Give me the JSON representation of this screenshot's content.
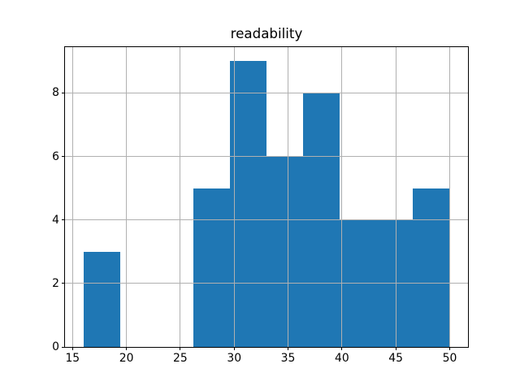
{
  "chart_data": {
    "type": "histogram",
    "title": "readability",
    "xlabel": "",
    "ylabel": "",
    "bin_edges": [
      16.0,
      19.4,
      22.8,
      26.2,
      29.6,
      33.0,
      36.4,
      39.8,
      43.2,
      46.6,
      50.0
    ],
    "counts": [
      3,
      0,
      0,
      5,
      9,
      6,
      8,
      4,
      4,
      5
    ],
    "xticks": [
      15,
      20,
      25,
      30,
      35,
      40,
      45,
      50
    ],
    "yticks": [
      0,
      2,
      4,
      6,
      8
    ],
    "xlim": [
      14.3,
      51.7
    ],
    "ylim": [
      0,
      9.45
    ],
    "grid": true,
    "legend": null,
    "bar_color": "#1f77b4",
    "grid_color": "#b0b0b0",
    "frame_color": "#000000",
    "background_color": "#ffffff"
  }
}
